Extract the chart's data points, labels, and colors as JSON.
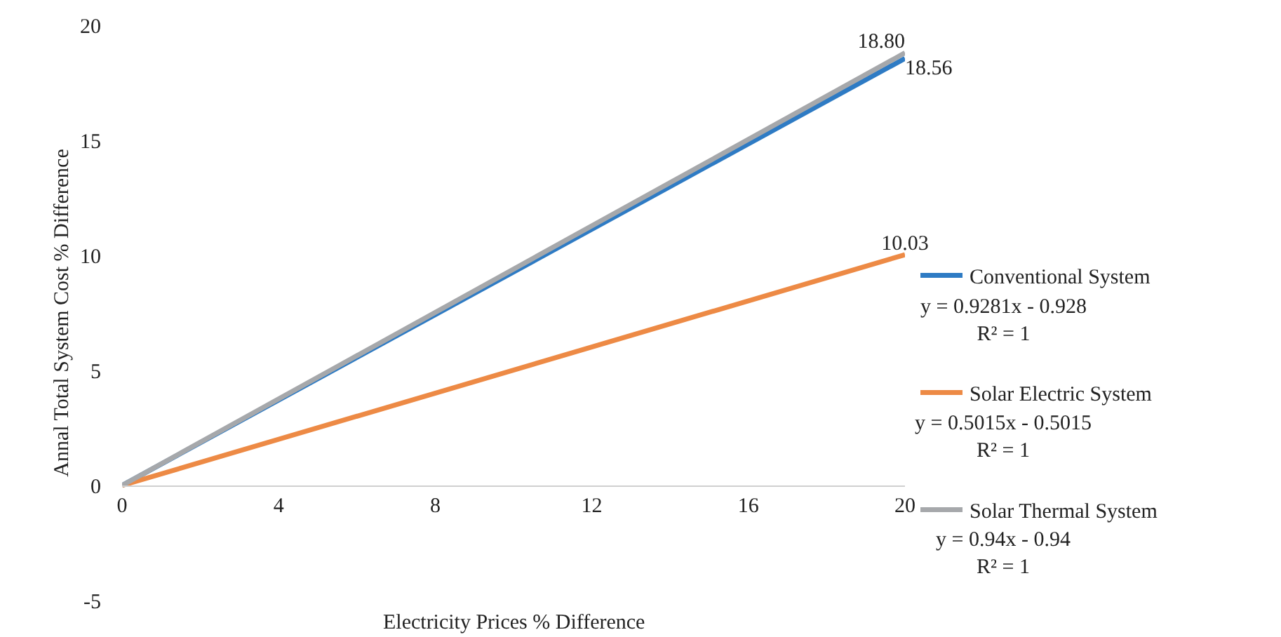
{
  "chart_data": {
    "type": "line",
    "xlabel": "Electricity Prices % Difference",
    "ylabel": "Annal Total System Cost % Difference",
    "x": [
      0,
      20
    ],
    "series": [
      {
        "name": "Conventional System",
        "color": "#2e7bc4",
        "values": [
          0,
          18.56
        ],
        "value_labels": [
          null,
          "18.56"
        ]
      },
      {
        "name": "Solar Electric System",
        "color": "#ed8a45",
        "values": [
          0,
          10.03
        ],
        "value_labels": [
          null,
          "10.03"
        ]
      },
      {
        "name": "Solar Thermal System",
        "color": "#a6a8ab",
        "values": [
          0,
          18.8
        ],
        "value_labels": [
          null,
          "18.80"
        ]
      }
    ],
    "annotations": [
      "y = 0.9281x - 0.928\nR² = 1",
      "y = 0.5015x - 0.5015\nR² = 1",
      "y = 0.94x - 0.94\nR² = 1"
    ],
    "xlim": [
      0,
      20
    ],
    "xticks": [
      0,
      4,
      8,
      12,
      16,
      20
    ],
    "ylim": [
      -5,
      20
    ],
    "yticks": [
      -5,
      0,
      5,
      10,
      15,
      20
    ],
    "grid": false,
    "legend": "right",
    "marker": "none",
    "line_style": "solid"
  }
}
